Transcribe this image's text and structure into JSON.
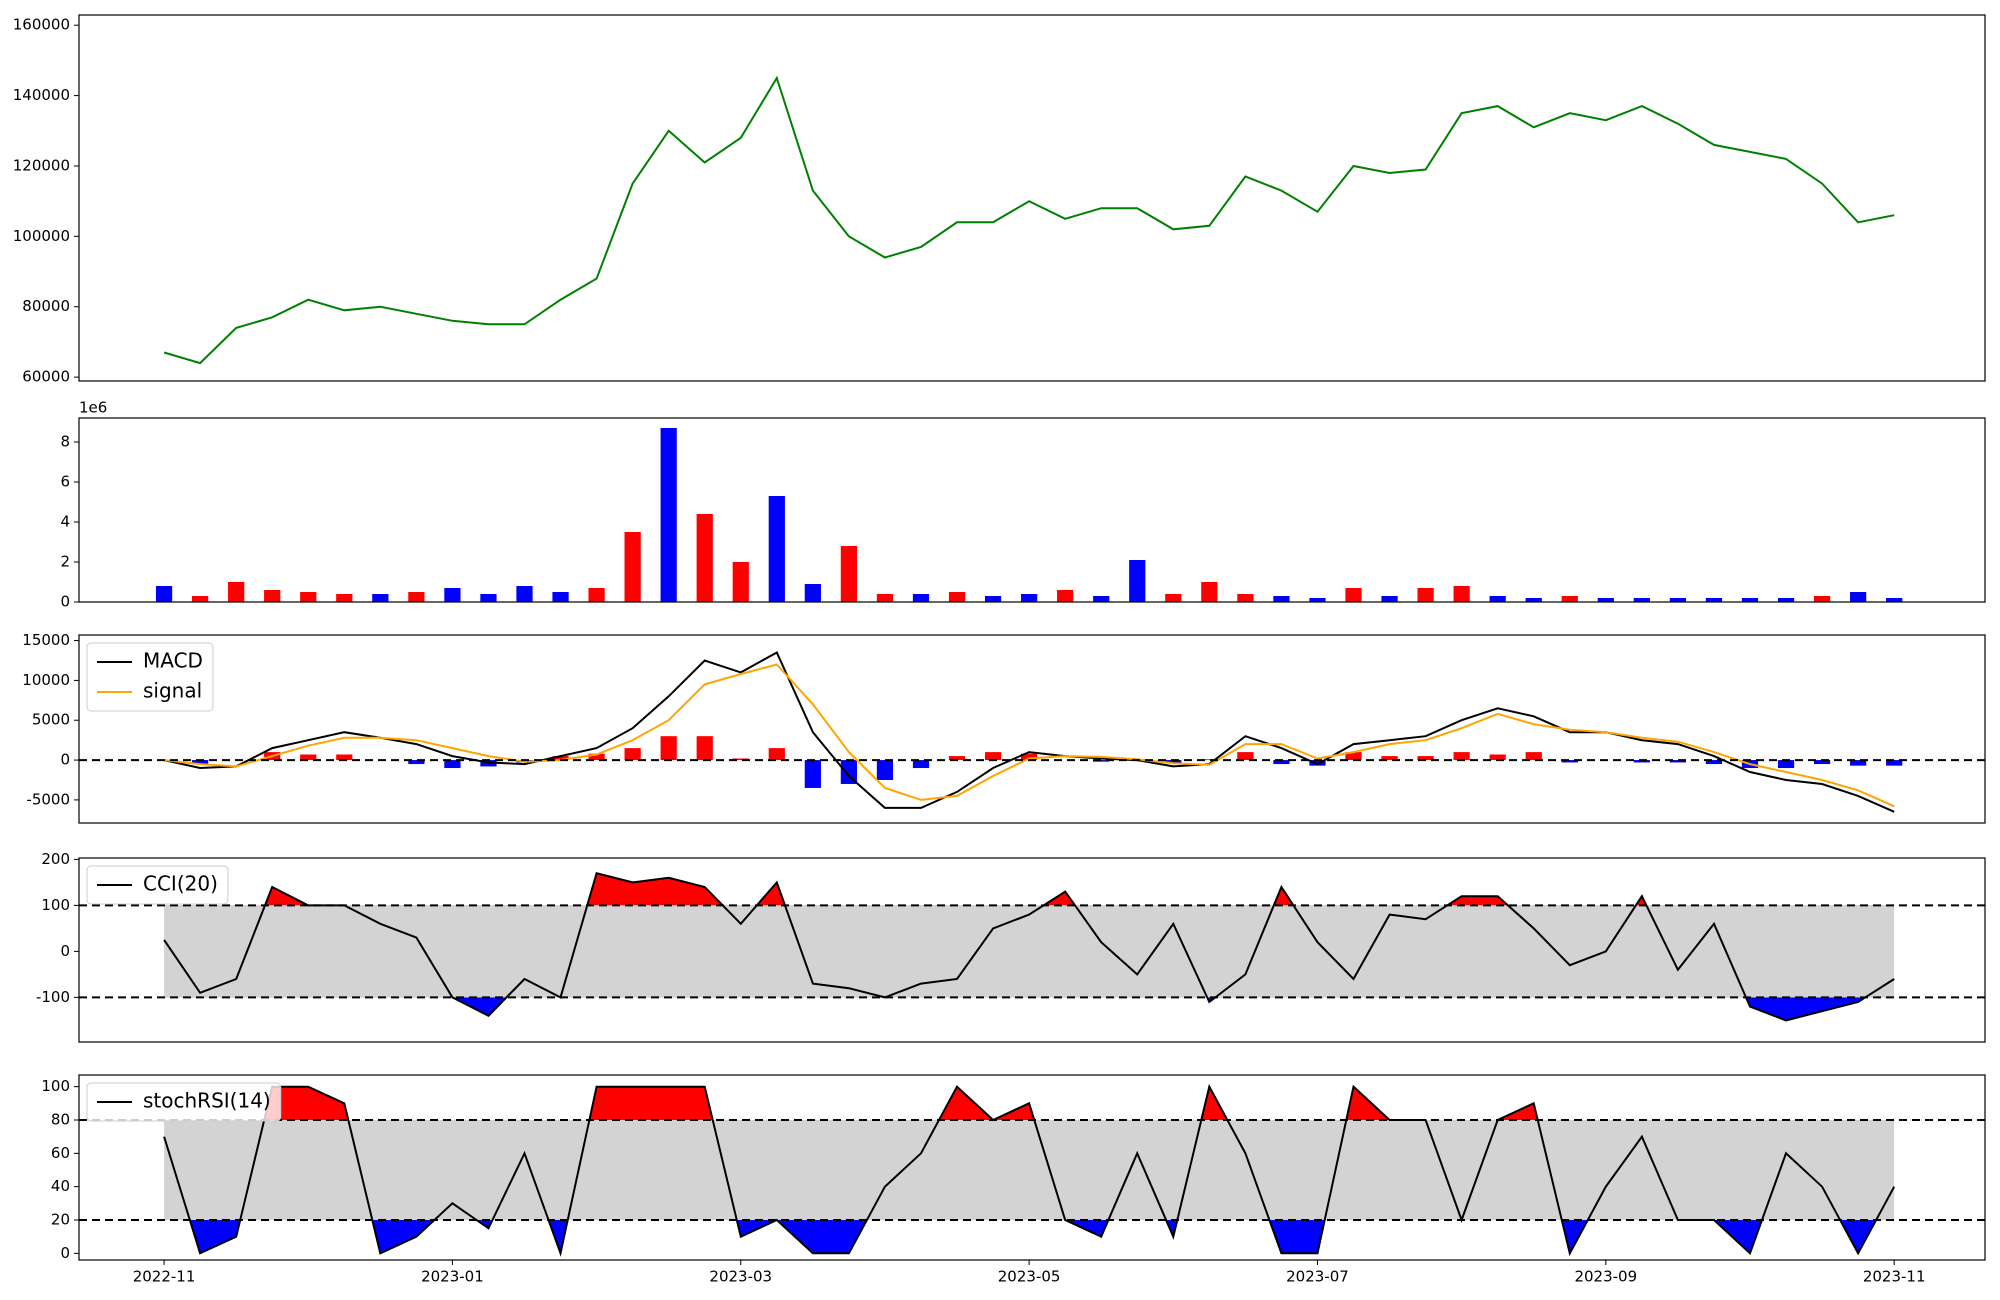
{
  "chart_data": [
    {
      "type": "line",
      "xlim": [
        -0.59,
        12.63
      ],
      "ylim": [
        58900,
        162900
      ],
      "yticks": [
        60000,
        80000,
        100000,
        120000,
        140000,
        160000
      ],
      "x": [
        0,
        0.25,
        0.5,
        0.75,
        1,
        1.25,
        1.5,
        1.75,
        2,
        2.25,
        2.5,
        2.75,
        3,
        3.25,
        3.5,
        3.75,
        4,
        4.25,
        4.5,
        4.75,
        5,
        5.25,
        5.5,
        5.75,
        6,
        6.25,
        6.5,
        6.75,
        7,
        7.25,
        7.5,
        7.75,
        8,
        8.25,
        8.5,
        8.75,
        9,
        9.25,
        9.5,
        9.75,
        10,
        10.25,
        10.5,
        10.75,
        11,
        11.25,
        11.5,
        11.75,
        12
      ],
      "series": [
        {
          "color": "green",
          "values": [
            67000,
            64000,
            74000,
            77000,
            82000,
            79000,
            80000,
            78000,
            76000,
            75000,
            75000,
            82000,
            88000,
            115000,
            130000,
            121000,
            128000,
            145000,
            113000,
            100000,
            94000,
            97000,
            104000,
            104000,
            110000,
            105000,
            108000,
            108000,
            102000,
            103000,
            117000,
            113000,
            107000,
            120000,
            118000,
            119000,
            135000,
            137000,
            131000,
            135000,
            133000,
            137000,
            132000,
            126000,
            124000,
            122000,
            115000,
            104000,
            106000
          ]
        }
      ]
    },
    {
      "type": "bar",
      "xlim": [
        -0.59,
        12.63
      ],
      "ylim": [
        0,
        9.2
      ],
      "yticks": [
        0,
        2,
        4,
        6,
        8
      ],
      "offset_label": "1e6",
      "x": [
        0,
        0.25,
        0.5,
        0.75,
        1,
        1.25,
        1.5,
        1.75,
        2,
        2.25,
        2.5,
        2.75,
        3,
        3.25,
        3.5,
        3.75,
        4,
        4.25,
        4.5,
        4.75,
        5,
        5.25,
        5.5,
        5.75,
        6,
        6.25,
        6.5,
        6.75,
        7,
        7.25,
        7.5,
        7.75,
        8,
        8.25,
        8.5,
        8.75,
        9,
        9.25,
        9.5,
        9.75,
        10,
        10.25,
        10.5,
        10.75,
        11,
        11.25,
        11.5,
        11.75,
        12
      ],
      "values": [
        0.8,
        0.3,
        1.0,
        0.6,
        0.5,
        0.4,
        0.4,
        0.5,
        0.7,
        0.4,
        0.8,
        0.5,
        0.7,
        3.5,
        8.7,
        4.4,
        2.0,
        5.3,
        0.9,
        2.8,
        0.4,
        0.4,
        0.5,
        0.3,
        0.4,
        0.6,
        0.3,
        2.1,
        0.4,
        1.0,
        0.4,
        0.3,
        0.2,
        0.7,
        0.3,
        0.7,
        0.8,
        0.3,
        0.2,
        0.3,
        0.2,
        0.2,
        0.2,
        0.2,
        0.2,
        0.2,
        0.3,
        0.5,
        0.2
      ],
      "colors": [
        "blue",
        "red",
        "red",
        "red",
        "red",
        "red",
        "blue",
        "red",
        "blue",
        "blue",
        "blue",
        "blue",
        "red",
        "red",
        "blue",
        "red",
        "red",
        "blue",
        "blue",
        "red",
        "red",
        "blue",
        "red",
        "blue",
        "blue",
        "red",
        "blue",
        "blue",
        "red",
        "red",
        "red",
        "blue",
        "blue",
        "red",
        "blue",
        "red",
        "red",
        "blue",
        "blue",
        "red",
        "blue",
        "blue",
        "blue",
        "blue",
        "blue",
        "blue",
        "red",
        "blue",
        "blue"
      ]
    },
    {
      "type": "line",
      "xlim": [
        -0.59,
        12.63
      ],
      "ylim": [
        -7900,
        15700
      ],
      "yticks": [
        -5000,
        0,
        5000,
        10000,
        15000
      ],
      "thresholds": [
        0
      ],
      "legend": "upper left",
      "x": [
        0,
        0.25,
        0.5,
        0.75,
        1,
        1.25,
        1.5,
        1.75,
        2,
        2.25,
        2.5,
        2.75,
        3,
        3.25,
        3.5,
        3.75,
        4,
        4.25,
        4.5,
        4.75,
        5,
        5.25,
        5.5,
        5.75,
        6,
        6.25,
        6.5,
        6.75,
        7,
        7.25,
        7.5,
        7.75,
        8,
        8.25,
        8.5,
        8.75,
        9,
        9.25,
        9.5,
        9.75,
        10,
        10.25,
        10.5,
        10.75,
        11,
        11.25,
        11.5,
        11.75,
        12
      ],
      "series": [
        {
          "type": "bar",
          "pos_color": "red",
          "neg_color": "blue",
          "values": [
            0,
            -500,
            0,
            1000,
            700,
            700,
            0,
            -500,
            -1000,
            -800,
            -300,
            500,
            800,
            1500,
            3000,
            3000,
            200,
            1500,
            -3500,
            -3000,
            -2500,
            -1000,
            500,
            1000,
            800,
            0,
            -200,
            -100,
            -400,
            100,
            1000,
            -500,
            -700,
            1000,
            500,
            500,
            1000,
            700,
            1000,
            -300,
            0,
            -300,
            -300,
            -500,
            -1000,
            -1000,
            -500,
            -700,
            -700
          ]
        },
        {
          "name": "MACD",
          "color": "black",
          "values": [
            0,
            -1000,
            -800,
            1500,
            2500,
            3500,
            2800,
            2000,
            500,
            -300,
            -500,
            500,
            1500,
            4000,
            8000,
            12500,
            11000,
            13500,
            3500,
            -2000,
            -6000,
            -6000,
            -4000,
            -1000,
            1000,
            500,
            200,
            0,
            -800,
            -500,
            3000,
            1500,
            -500,
            2000,
            2500,
            3000,
            5000,
            6500,
            5500,
            3500,
            3500,
            2500,
            2000,
            500,
            -1500,
            -2500,
            -3000,
            -4500,
            -6500
          ]
        },
        {
          "name": "signal",
          "color": "orange",
          "values": [
            0,
            -500,
            -800,
            500,
            1800,
            2800,
            2800,
            2500,
            1500,
            500,
            -200,
            0,
            700,
            2500,
            5000,
            9500,
            10800,
            12000,
            7000,
            1000,
            -3500,
            -5000,
            -4500,
            -2000,
            200,
            500,
            400,
            100,
            -400,
            -600,
            2000,
            2000,
            200,
            1000,
            2000,
            2500,
            4000,
            5800,
            4500,
            3800,
            3500,
            2800,
            2300,
            1000,
            -500,
            -1500,
            -2500,
            -3800,
            -5800
          ]
        }
      ]
    },
    {
      "type": "line",
      "xlim": [
        -0.59,
        12.63
      ],
      "ylim": [
        -197,
        203
      ],
      "yticks": [
        -100,
        0,
        100,
        200
      ],
      "thresholds": [
        -100,
        100
      ],
      "legend": "upper left",
      "fill": {
        "band_color": "lightgray",
        "above_color": "red",
        "below_color": "blue"
      },
      "x": [
        0,
        0.25,
        0.5,
        0.75,
        1,
        1.25,
        1.5,
        1.75,
        2,
        2.25,
        2.5,
        2.75,
        3,
        3.25,
        3.5,
        3.75,
        4,
        4.25,
        4.5,
        4.75,
        5,
        5.25,
        5.5,
        5.75,
        6,
        6.25,
        6.5,
        6.75,
        7,
        7.25,
        7.5,
        7.75,
        8,
        8.25,
        8.5,
        8.75,
        9,
        9.25,
        9.5,
        9.75,
        10,
        10.25,
        10.5,
        10.75,
        11,
        11.25,
        11.5,
        11.75,
        12
      ],
      "series": [
        {
          "name": "CCI(20)",
          "color": "black",
          "values": [
            25,
            -90,
            -60,
            140,
            100,
            100,
            60,
            30,
            -100,
            -140,
            -60,
            -100,
            170,
            150,
            160,
            140,
            60,
            150,
            -70,
            -80,
            -100,
            -70,
            -60,
            50,
            80,
            130,
            20,
            -50,
            60,
            -110,
            -50,
            140,
            20,
            -60,
            80,
            70,
            120,
            120,
            50,
            -30,
            0,
            120,
            -40,
            60,
            -120,
            -150,
            -130,
            -110,
            -60
          ]
        }
      ]
    },
    {
      "type": "line",
      "xlim": [
        -0.59,
        12.63
      ],
      "ylim": [
        -4,
        107
      ],
      "yticks": [
        0,
        20,
        40,
        60,
        80,
        100
      ],
      "thresholds": [
        20,
        80
      ],
      "legend": "upper left",
      "fill": {
        "band_color": "lightgray",
        "above_color": "red",
        "below_color": "blue"
      },
      "x": [
        0,
        0.25,
        0.5,
        0.75,
        1,
        1.25,
        1.5,
        1.75,
        2,
        2.25,
        2.5,
        2.75,
        3,
        3.25,
        3.5,
        3.75,
        4,
        4.25,
        4.5,
        4.75,
        5,
        5.25,
        5.5,
        5.75,
        6,
        6.25,
        6.5,
        6.75,
        7,
        7.25,
        7.5,
        7.75,
        8,
        8.25,
        8.5,
        8.75,
        9,
        9.25,
        9.5,
        9.75,
        10,
        10.25,
        10.5,
        10.75,
        11,
        11.25,
        11.5,
        11.75,
        12
      ],
      "xticks": [
        {
          "value": 0,
          "label": "2022-11"
        },
        {
          "value": 2,
          "label": "2023-01"
        },
        {
          "value": 4,
          "label": "2023-03"
        },
        {
          "value": 6,
          "label": "2023-05"
        },
        {
          "value": 8,
          "label": "2023-07"
        },
        {
          "value": 10,
          "label": "2023-09"
        },
        {
          "value": 12,
          "label": "2023-11"
        }
      ],
      "series": [
        {
          "name": "stochRSI(14)",
          "color": "black",
          "values": [
            70,
            0,
            10,
            100,
            100,
            90,
            0,
            10,
            30,
            15,
            60,
            0,
            100,
            100,
            100,
            100,
            10,
            20,
            0,
            0,
            40,
            60,
            100,
            80,
            90,
            20,
            10,
            60,
            10,
            100,
            60,
            0,
            0,
            100,
            80,
            80,
            20,
            80,
            90,
            0,
            40,
            70,
            20,
            20,
            0,
            60,
            40,
            0,
            40
          ]
        }
      ]
    }
  ]
}
